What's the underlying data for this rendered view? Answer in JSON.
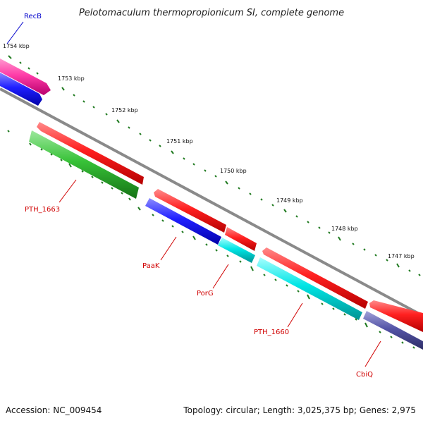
{
  "header": {
    "title": "Pelotomaculum thermopropionicum SI, complete genome"
  },
  "footer": {
    "accession": "Accession: NC_009454",
    "topology": "Topology: circular; Length: 3,025,375 bp; Genes: 2,975"
  },
  "scale": {
    "labels": [
      "1754 kbp",
      "1753 kbp",
      "1752 kbp",
      "1751 kbp",
      "1750 kbp",
      "1749 kbp",
      "1748 kbp",
      "1747 kbp"
    ]
  },
  "genes": {
    "labels": [
      "RecB",
      "PTH_1663",
      "PaaK",
      "PorG",
      "PTH_1660",
      "CbiQ"
    ]
  },
  "colors": {
    "tick": "#1f7a1f",
    "backbone": "#8a8a8a",
    "red": "#ff1f1f",
    "pink": "#ff3da8",
    "blue": "#1f1fff",
    "green": "#38c238",
    "cyan": "#00e5e5",
    "purple": "#4b4b9a",
    "label_red": "#d00000",
    "label_blue": "#0000cc"
  }
}
